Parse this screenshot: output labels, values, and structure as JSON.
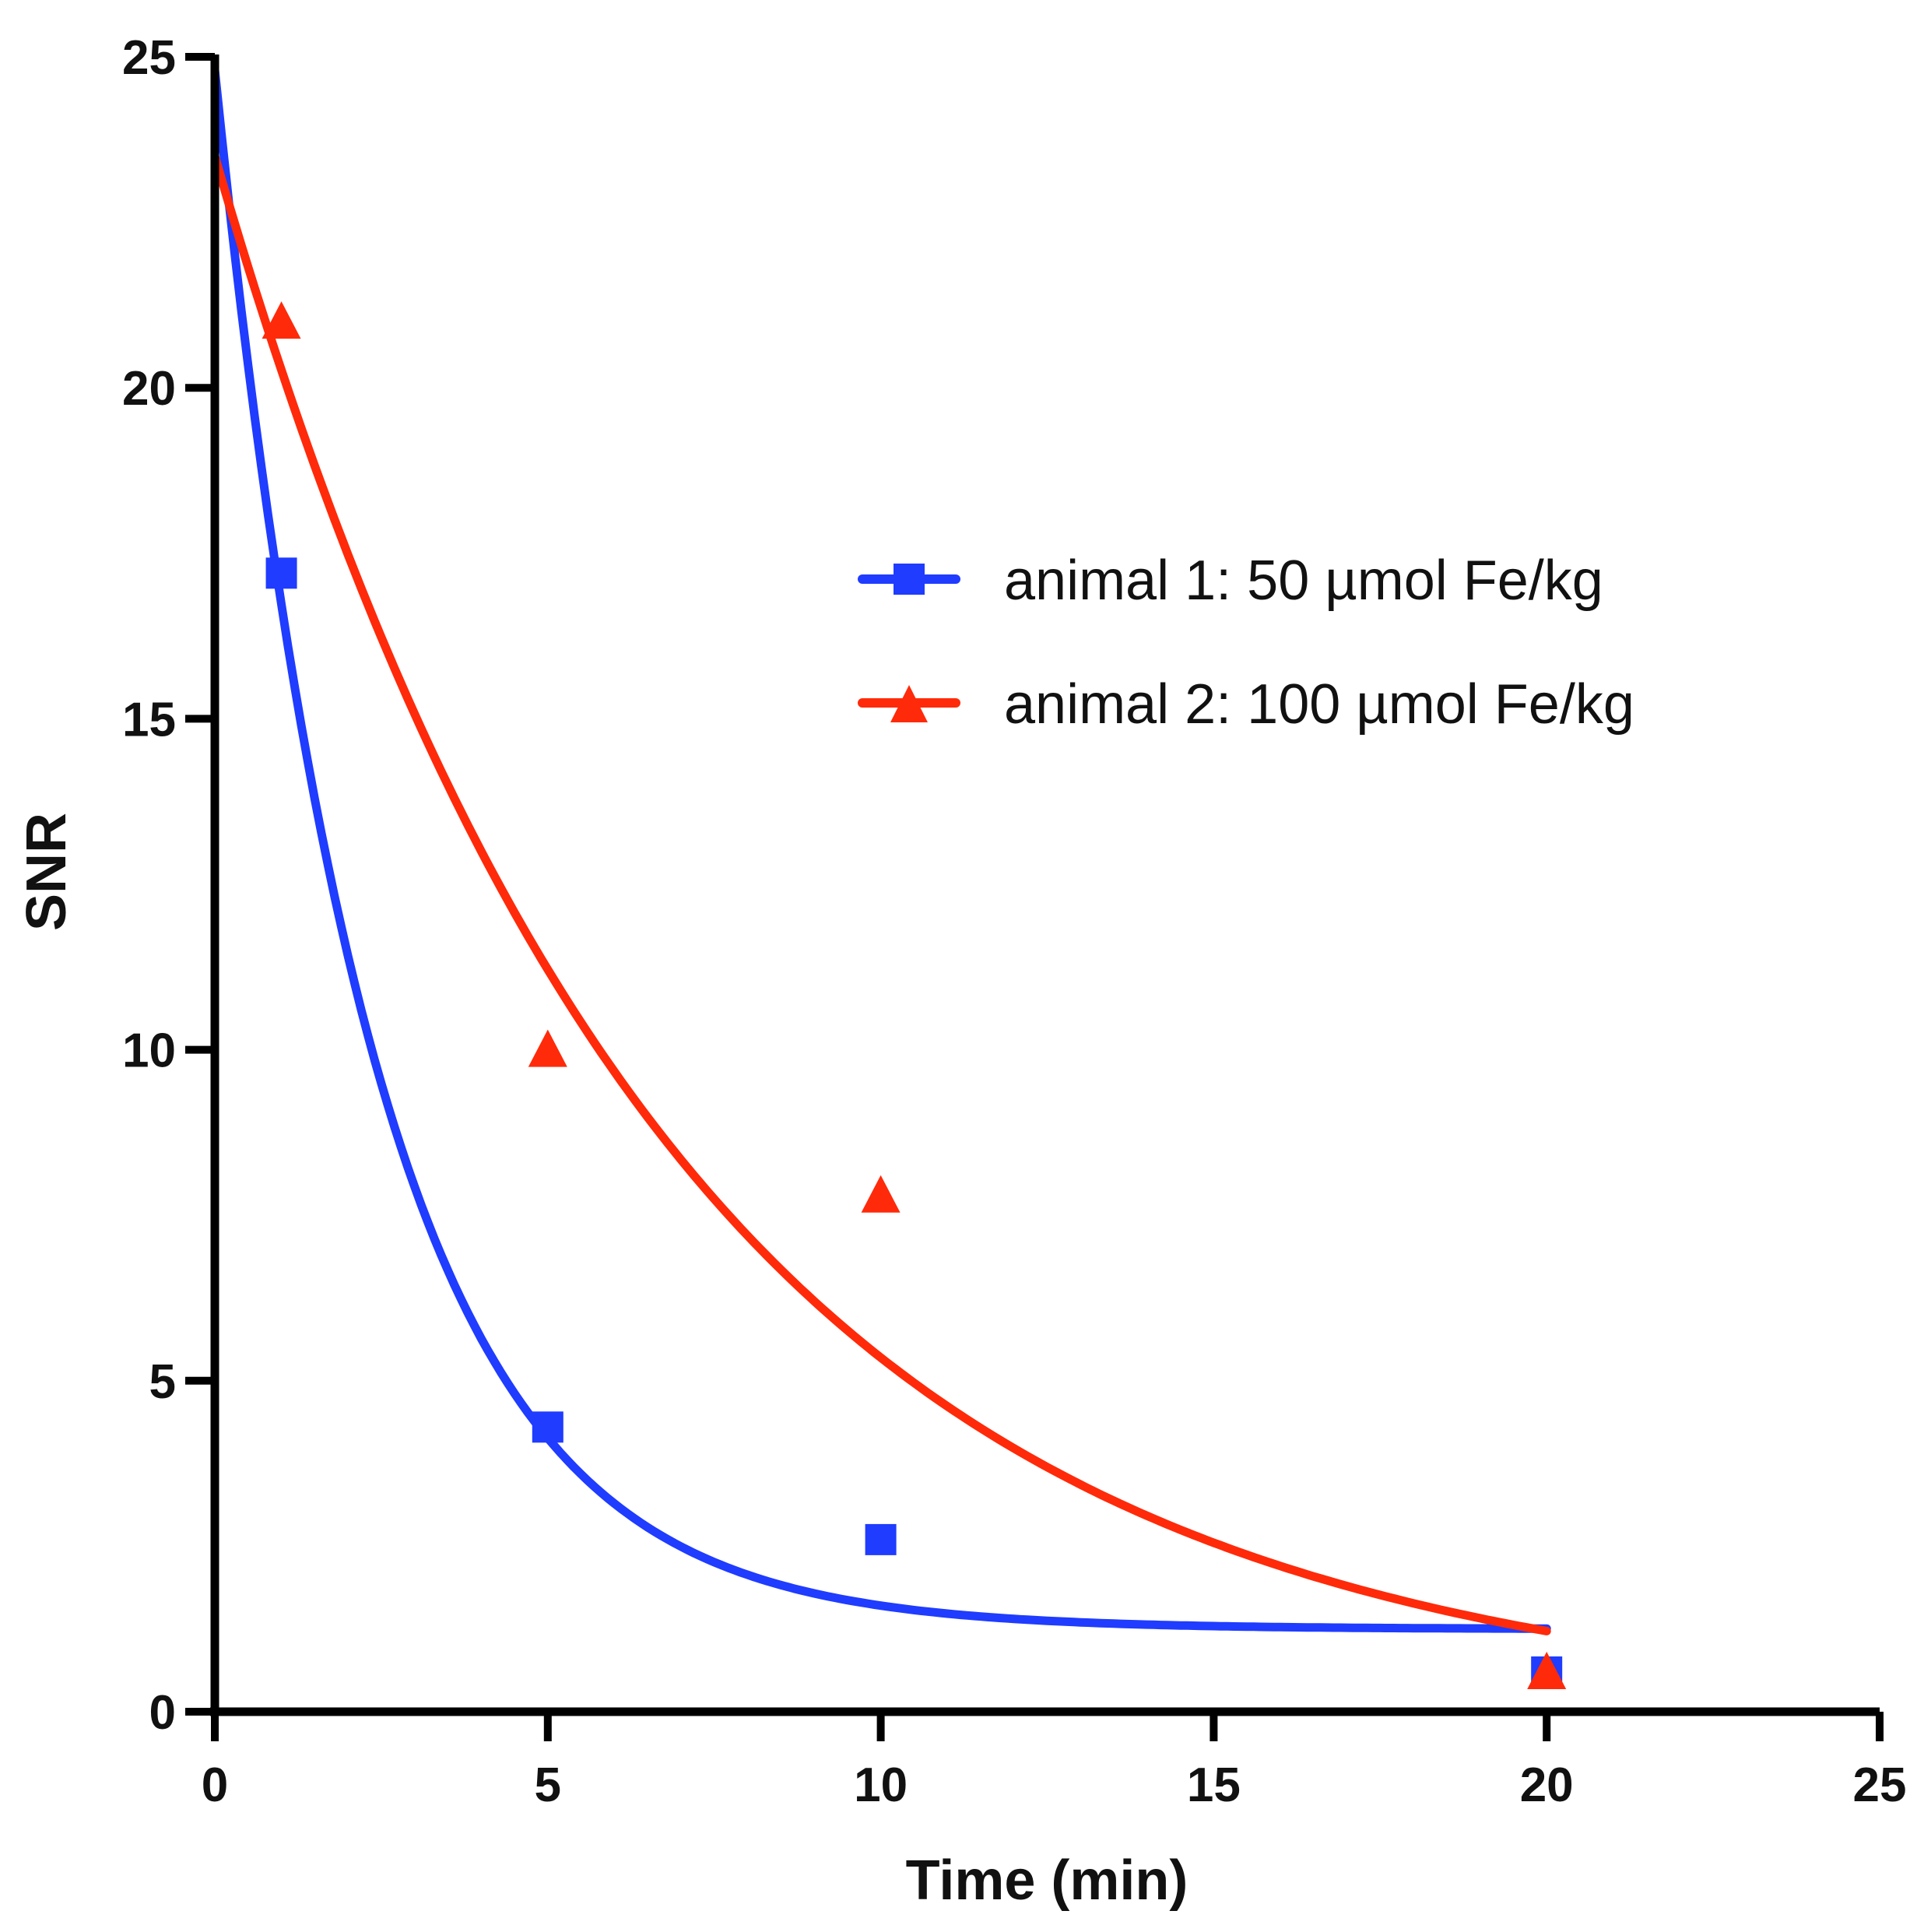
{
  "chart_data": {
    "type": "scatter",
    "title": "",
    "xlabel": "Time (min)",
    "ylabel": "SNR",
    "xlim": [
      0,
      25
    ],
    "ylim": [
      0,
      25
    ],
    "x_ticks": [
      "0",
      "5",
      "10",
      "15",
      "20",
      "25"
    ],
    "y_ticks": [
      "0",
      "5",
      "10",
      "15",
      "20",
      "25"
    ],
    "grid": false,
    "legend_position": "upper-right",
    "series": [
      {
        "name": "animal 1: 50 µmol Fe/kg",
        "color": "#1f3cff",
        "marker": "square",
        "x": [
          1,
          5,
          10,
          20
        ],
        "y": [
          17.2,
          4.3,
          2.6,
          0.6
        ],
        "fit": {
          "model": "one-phase exponential decay",
          "y0": 24.8,
          "plateau": 1.25,
          "k": 0.42,
          "x_range": [
            0,
            20
          ]
        }
      },
      {
        "name": "animal 2: 100 µmol Fe/kg",
        "color": "#ff2a0a",
        "marker": "triangle",
        "x": [
          1,
          5,
          10,
          20
        ],
        "y": [
          21.0,
          10.0,
          7.8,
          0.6
        ],
        "fit": {
          "model": "one-phase exponential decay",
          "y0": 23.5,
          "plateau": 0,
          "k": 0.148,
          "x_range": [
            0,
            20
          ]
        }
      }
    ]
  }
}
